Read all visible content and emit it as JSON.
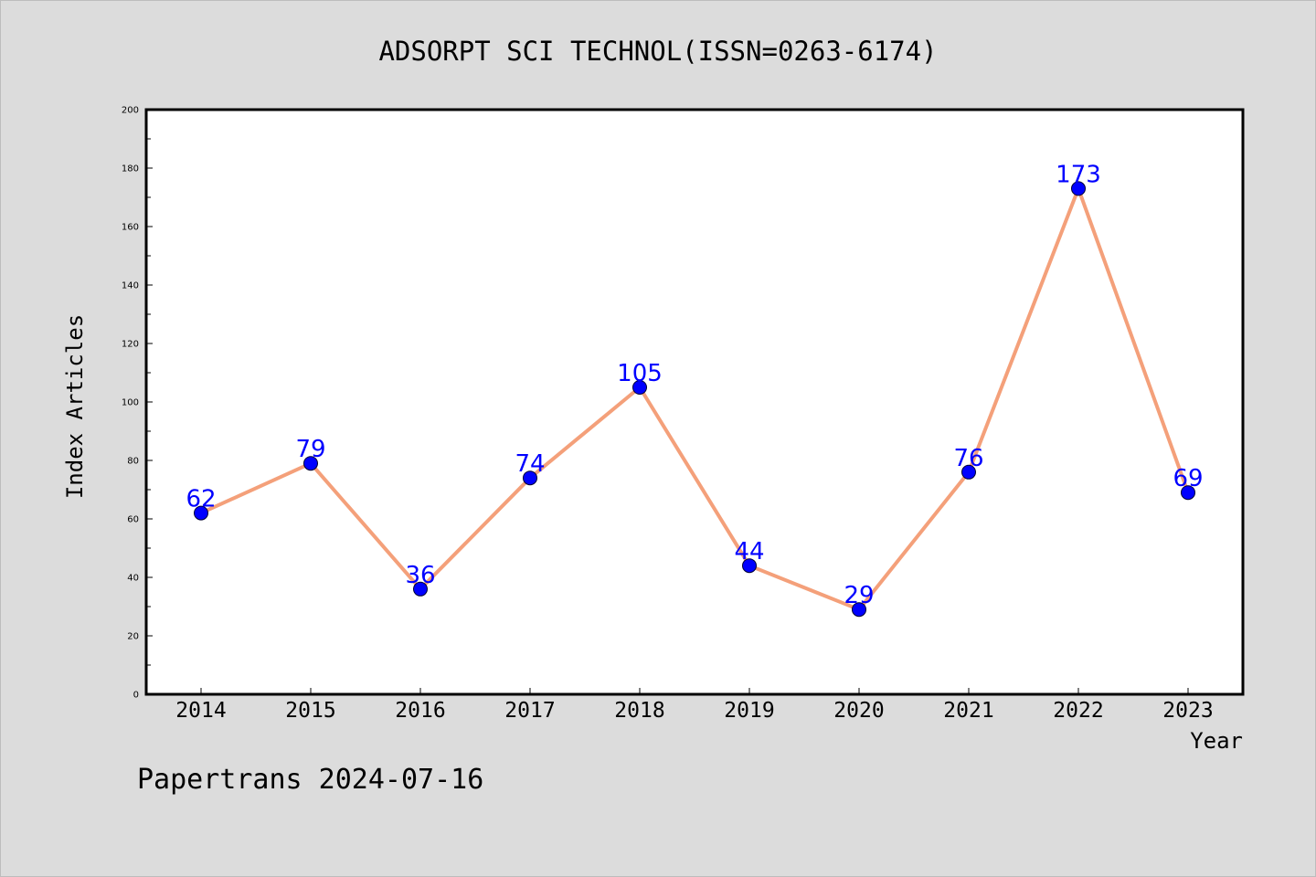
{
  "chart_data": {
    "type": "line",
    "title": "ADSORPT SCI TECHNOL(ISSN=0263-6174)",
    "xlabel": "Year",
    "ylabel": "Index Articles",
    "categories": [
      "2014",
      "2015",
      "2016",
      "2017",
      "2018",
      "2019",
      "2020",
      "2021",
      "2022",
      "2023"
    ],
    "series": [
      {
        "values": [
          62,
          79,
          36,
          74,
          105,
          44,
          29,
          76,
          173,
          69
        ]
      }
    ],
    "ylim": [
      0,
      200
    ],
    "yticks": [
      0,
      20,
      40,
      60,
      80,
      100,
      120,
      140,
      160,
      180,
      200
    ],
    "grid": false,
    "data_labels": true,
    "colors": {
      "line": "#f4a07a",
      "marker": "#0000ff",
      "data_label": "#0000ff",
      "plot_background": "#ffffff",
      "page_background": "#dcdcdc"
    }
  },
  "footer": {
    "text": "Papertrans 2024-07-16"
  }
}
